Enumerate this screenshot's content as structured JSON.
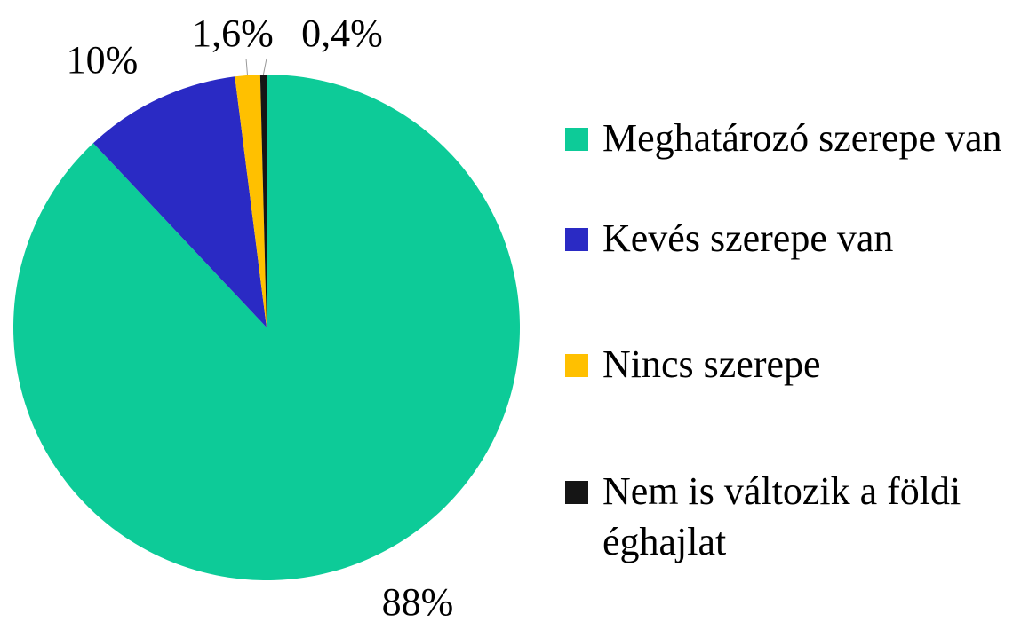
{
  "chart_data": {
    "type": "pie",
    "categories": [
      "Meghatározó szerepe van",
      "Kevés szerepe van",
      "Nincs szerepe",
      "Nem is változik a földi éghajlat"
    ],
    "values": [
      88,
      10,
      1.6,
      0.4
    ],
    "value_labels": [
      "88%",
      "10%",
      "1,6%",
      "0,4%"
    ],
    "colors": [
      "#0dcb98",
      "#2a2ac4",
      "#ffc000",
      "#151515"
    ],
    "legend": "right"
  }
}
